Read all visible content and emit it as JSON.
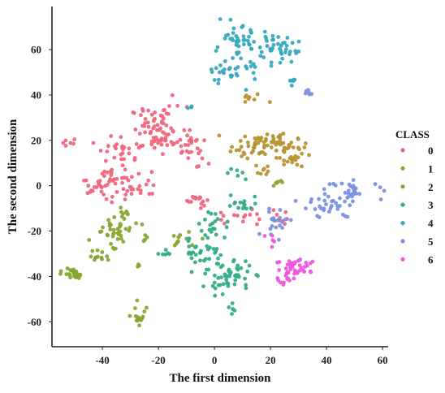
{
  "chart_data": {
    "type": "scatter",
    "xlabel": "The first dimension",
    "ylabel": "The second dimension",
    "xlim": [
      -58,
      62
    ],
    "ylim": [
      -71,
      79
    ],
    "xticks": [
      -40,
      -20,
      0,
      20,
      40,
      60
    ],
    "yticks": [
      -60,
      -40,
      -20,
      0,
      20,
      40,
      60
    ],
    "grid": false,
    "legend": {
      "title": "CLASS",
      "placement": "right"
    },
    "series": [
      {
        "name": "0",
        "color": "#f0677d",
        "clusters": [
          {
            "cx": -20,
            "cy": 25,
            "sx": 5,
            "sy": 5,
            "n": 70
          },
          {
            "cx": -10,
            "cy": 16,
            "sx": 4,
            "sy": 4,
            "n": 30
          },
          {
            "cx": -33,
            "cy": 16,
            "sx": 4,
            "sy": 3,
            "n": 25
          },
          {
            "cx": -36,
            "cy": 3,
            "sx": 3,
            "sy": 5,
            "n": 30
          },
          {
            "cx": -28,
            "cy": 0,
            "sx": 4,
            "sy": 3,
            "n": 25
          },
          {
            "cx": -43,
            "cy": 0,
            "sx": 2.5,
            "sy": 2,
            "n": 12
          },
          {
            "cx": -5,
            "cy": -6,
            "sx": 3,
            "sy": 2,
            "n": 15
          },
          {
            "cx": -52,
            "cy": 19,
            "sx": 1,
            "sy": 1.2,
            "n": 6
          },
          {
            "cx": 8,
            "cy": -14,
            "sx": 4,
            "sy": 3,
            "n": 15
          },
          {
            "cx": 22,
            "cy": -13,
            "sx": 2,
            "sy": 2,
            "n": 8
          }
        ]
      },
      {
        "name": "1",
        "color": "#b69232",
        "clusters": [
          {
            "cx": 18,
            "cy": 18,
            "sx": 6,
            "sy": 2.5,
            "n": 70
          },
          {
            "cx": 27,
            "cy": 13,
            "sx": 3,
            "sy": 2.5,
            "n": 25
          },
          {
            "cx": 17,
            "cy": 7,
            "sx": 2,
            "sy": 2,
            "n": 8
          },
          {
            "cx": 12,
            "cy": 38,
            "sx": 3,
            "sy": 1,
            "n": 8
          }
        ]
      },
      {
        "name": "2",
        "color": "#87a732",
        "clusters": [
          {
            "cx": -50,
            "cy": -39,
            "sx": 2,
            "sy": 1.5,
            "n": 25
          },
          {
            "cx": -42,
            "cy": -31,
            "sx": 1.5,
            "sy": 1.5,
            "n": 12
          },
          {
            "cx": -36,
            "cy": -20,
            "sx": 3.5,
            "sy": 3,
            "n": 35
          },
          {
            "cx": -33,
            "cy": -13,
            "sx": 2,
            "sy": 2,
            "n": 10
          },
          {
            "cx": -27,
            "cy": -58,
            "sx": 1.5,
            "sy": 2.5,
            "n": 15
          },
          {
            "cx": -12,
            "cy": -24,
            "sx": 3,
            "sy": 2,
            "n": 12
          },
          {
            "cx": -26,
            "cy": -24,
            "sx": 1.5,
            "sy": 1.5,
            "n": 5
          },
          {
            "cx": -27,
            "cy": -35,
            "sx": 0.5,
            "sy": 0.5,
            "n": 3
          },
          {
            "cx": 22,
            "cy": 2,
            "sx": 2,
            "sy": 2,
            "n": 6
          }
        ]
      },
      {
        "name": "3",
        "color": "#34ae8a",
        "clusters": [
          {
            "cx": 5,
            "cy": -40,
            "sx": 4,
            "sy": 3.5,
            "n": 55
          },
          {
            "cx": -4,
            "cy": -29,
            "sx": 3.5,
            "sy": 3,
            "n": 30
          },
          {
            "cx": 0,
            "cy": -18,
            "sx": 3,
            "sy": 3,
            "n": 20
          },
          {
            "cx": 10,
            "cy": -8,
            "sx": 3,
            "sy": 2.5,
            "n": 15
          },
          {
            "cx": -17,
            "cy": -30,
            "sx": 2,
            "sy": 1.5,
            "n": 6
          },
          {
            "cx": 7,
            "cy": -54,
            "sx": 0.8,
            "sy": 1,
            "n": 5
          },
          {
            "cx": 9,
            "cy": 4,
            "sx": 2,
            "sy": 2,
            "n": 6
          }
        ]
      },
      {
        "name": "4",
        "color": "#37a9bd",
        "clusters": [
          {
            "cx": 8,
            "cy": 62,
            "sx": 4,
            "sy": 4,
            "n": 45
          },
          {
            "cx": 22,
            "cy": 60,
            "sx": 4,
            "sy": 3,
            "n": 40
          },
          {
            "cx": 6,
            "cy": 50,
            "sx": 5,
            "sy": 3,
            "n": 30
          },
          {
            "cx": 28,
            "cy": 46,
            "sx": 1,
            "sy": 1,
            "n": 6
          },
          {
            "cx": -9,
            "cy": 35,
            "sx": 1,
            "sy": 1,
            "n": 3
          }
        ]
      },
      {
        "name": "5",
        "color": "#7b90e0",
        "clusters": [
          {
            "cx": 50,
            "cy": -2,
            "sx": 5,
            "sy": 2,
            "n": 30
          },
          {
            "cx": 41,
            "cy": -9,
            "sx": 5,
            "sy": 3,
            "n": 30
          },
          {
            "cx": 22,
            "cy": -16,
            "sx": 2.5,
            "sy": 3,
            "n": 20
          },
          {
            "cx": 33,
            "cy": 42,
            "sx": 1.5,
            "sy": 1,
            "n": 6
          }
        ]
      },
      {
        "name": "6",
        "color": "#ef58de",
        "clusters": [
          {
            "cx": 30,
            "cy": -36,
            "sx": 4,
            "sy": 2.5,
            "n": 40
          },
          {
            "cx": 25,
            "cy": -41,
            "sx": 2,
            "sy": 1.5,
            "n": 12
          },
          {
            "cx": 20,
            "cy": -24,
            "sx": 1.5,
            "sy": 1.5,
            "n": 5
          }
        ]
      }
    ]
  }
}
